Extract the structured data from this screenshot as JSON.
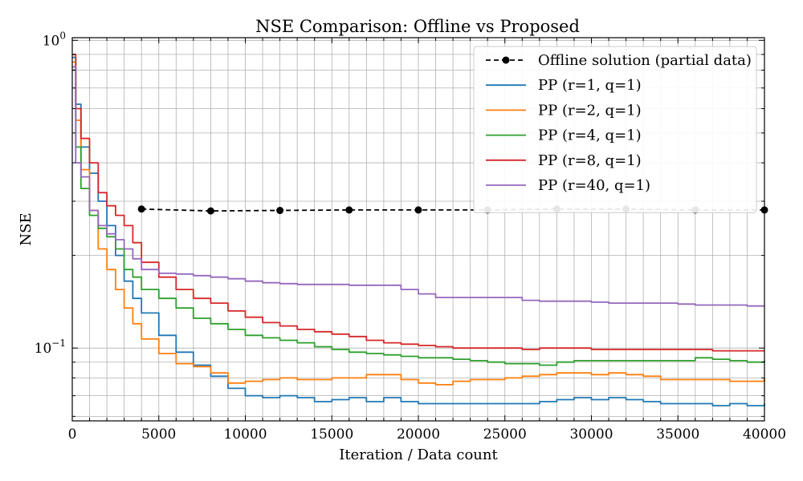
{
  "chart_data": {
    "type": "line",
    "title": "NSE Comparison: Offline vs Proposed",
    "xlabel": "Iteration / Data count",
    "ylabel": "NSE",
    "xlim": [
      0,
      40000
    ],
    "ylim": [
      0.058,
      1.02
    ],
    "yscale": "log",
    "grid": true,
    "legend_position": "top-right",
    "x_ticks": [
      0,
      5000,
      10000,
      15000,
      20000,
      25000,
      30000,
      35000,
      40000
    ],
    "x_tick_labels": [
      "0",
      "5000",
      "10000",
      "15000",
      "20000",
      "25000",
      "30000",
      "35000",
      "40000"
    ],
    "y_ticks": [
      1.0,
      0.1
    ],
    "y_tick_labels": [
      {
        "base": "10",
        "exp": "0"
      },
      {
        "base": "10",
        "exp": "−1"
      }
    ],
    "series": [
      {
        "name": "Offline solution (partial data)",
        "color": "#000000",
        "style": "dashed",
        "marker": "circle",
        "x": [
          4000,
          8000,
          12000,
          16000,
          20000,
          24000,
          28000,
          32000,
          36000,
          40000
        ],
        "y": [
          0.283,
          0.279,
          0.28,
          0.281,
          0.281,
          0.281,
          0.283,
          0.283,
          0.281,
          0.281
        ]
      },
      {
        "name": "PP (r=1, q=1)",
        "color": "#1f77b4",
        "style": "solid",
        "x": [
          0,
          200,
          500,
          1000,
          1500,
          2000,
          2500,
          3000,
          3500,
          4000,
          5000,
          6000,
          7000,
          8000,
          9000,
          10000,
          11000,
          12000,
          13000,
          14000,
          15000,
          16000,
          17000,
          18000,
          19000,
          20000,
          21000,
          22000,
          23000,
          24000,
          25000,
          26000,
          27000,
          28000,
          29000,
          30000,
          31000,
          32000,
          33000,
          34000,
          35000,
          36000,
          37000,
          38000,
          39000,
          40000
        ],
        "y": [
          0.88,
          0.62,
          0.45,
          0.37,
          0.3,
          0.25,
          0.2,
          0.165,
          0.145,
          0.13,
          0.11,
          0.097,
          0.088,
          0.081,
          0.074,
          0.07,
          0.069,
          0.07,
          0.069,
          0.067,
          0.068,
          0.069,
          0.067,
          0.069,
          0.067,
          0.066,
          0.066,
          0.066,
          0.066,
          0.066,
          0.066,
          0.066,
          0.067,
          0.068,
          0.069,
          0.068,
          0.069,
          0.068,
          0.067,
          0.066,
          0.066,
          0.066,
          0.065,
          0.066,
          0.065,
          0.066
        ]
      },
      {
        "name": "PP (r=2, q=1)",
        "color": "#ff7f0e",
        "style": "solid",
        "x": [
          0,
          200,
          500,
          1000,
          1500,
          2000,
          2500,
          3000,
          3500,
          4000,
          5000,
          6000,
          7000,
          8000,
          9000,
          10000,
          11000,
          12000,
          13000,
          14000,
          15000,
          16000,
          17000,
          18000,
          19000,
          20000,
          21000,
          22000,
          23000,
          24000,
          25000,
          26000,
          27000,
          28000,
          29000,
          30000,
          31000,
          32000,
          33000,
          34000,
          35000,
          36000,
          37000,
          38000,
          39000,
          40000
        ],
        "y": [
          0.85,
          0.55,
          0.38,
          0.28,
          0.21,
          0.18,
          0.155,
          0.135,
          0.12,
          0.107,
          0.096,
          0.089,
          0.087,
          0.083,
          0.077,
          0.078,
          0.079,
          0.08,
          0.079,
          0.079,
          0.08,
          0.08,
          0.082,
          0.082,
          0.079,
          0.077,
          0.076,
          0.078,
          0.079,
          0.079,
          0.08,
          0.081,
          0.082,
          0.083,
          0.083,
          0.082,
          0.083,
          0.082,
          0.081,
          0.079,
          0.079,
          0.079,
          0.079,
          0.078,
          0.078,
          0.08
        ]
      },
      {
        "name": "PP (r=4, q=1)",
        "color": "#2ca02c",
        "style": "solid",
        "x": [
          0,
          200,
          500,
          1000,
          1500,
          2000,
          2500,
          3000,
          3500,
          4000,
          5000,
          6000,
          7000,
          8000,
          9000,
          10000,
          11000,
          12000,
          13000,
          14000,
          15000,
          16000,
          17000,
          18000,
          19000,
          20000,
          21000,
          22000,
          23000,
          24000,
          25000,
          26000,
          27000,
          28000,
          29000,
          30000,
          31000,
          32000,
          33000,
          34000,
          35000,
          36000,
          37000,
          38000,
          39000,
          40000
        ],
        "y": [
          0.8,
          0.45,
          0.33,
          0.27,
          0.245,
          0.23,
          0.21,
          0.18,
          0.17,
          0.155,
          0.145,
          0.135,
          0.125,
          0.12,
          0.115,
          0.11,
          0.108,
          0.106,
          0.104,
          0.101,
          0.099,
          0.097,
          0.096,
          0.095,
          0.094,
          0.093,
          0.093,
          0.092,
          0.091,
          0.09,
          0.089,
          0.089,
          0.088,
          0.09,
          0.091,
          0.091,
          0.091,
          0.091,
          0.091,
          0.091,
          0.091,
          0.093,
          0.092,
          0.091,
          0.09,
          0.091
        ]
      },
      {
        "name": "PP (r=8, q=1)",
        "color": "#d62728",
        "style": "solid",
        "x": [
          0,
          200,
          500,
          1000,
          1500,
          2000,
          2500,
          3000,
          3500,
          4000,
          5000,
          6000,
          7000,
          8000,
          9000,
          10000,
          11000,
          12000,
          13000,
          14000,
          15000,
          16000,
          17000,
          18000,
          19000,
          20000,
          21000,
          22000,
          23000,
          24000,
          25000,
          26000,
          27000,
          28000,
          29000,
          30000,
          31000,
          32000,
          33000,
          34000,
          35000,
          36000,
          37000,
          38000,
          39000,
          40000
        ],
        "y": [
          0.9,
          0.6,
          0.48,
          0.4,
          0.32,
          0.29,
          0.27,
          0.25,
          0.22,
          0.19,
          0.17,
          0.155,
          0.145,
          0.14,
          0.132,
          0.126,
          0.121,
          0.118,
          0.115,
          0.113,
          0.111,
          0.109,
          0.106,
          0.104,
          0.103,
          0.102,
          0.101,
          0.1,
          0.1,
          0.1,
          0.1,
          0.099,
          0.1,
          0.1,
          0.1,
          0.099,
          0.099,
          0.099,
          0.099,
          0.099,
          0.099,
          0.099,
          0.098,
          0.098,
          0.098,
          0.098
        ]
      },
      {
        "name": "PP (r=40, q=1)",
        "color": "#9467bd",
        "style": "solid",
        "x": [
          0,
          200,
          500,
          1000,
          1500,
          2000,
          2500,
          3000,
          3500,
          4000,
          5000,
          6000,
          7000,
          8000,
          9000,
          10000,
          11000,
          12000,
          13000,
          14000,
          15000,
          16000,
          17000,
          18000,
          19000,
          20000,
          21000,
          22000,
          23000,
          24000,
          25000,
          26000,
          27000,
          28000,
          29000,
          30000,
          31000,
          32000,
          33000,
          34000,
          35000,
          36000,
          37000,
          38000,
          39000,
          40000
        ],
        "y": [
          0.82,
          0.4,
          0.36,
          0.28,
          0.25,
          0.235,
          0.225,
          0.21,
          0.195,
          0.18,
          0.175,
          0.174,
          0.172,
          0.17,
          0.168,
          0.165,
          0.163,
          0.162,
          0.161,
          0.161,
          0.161,
          0.16,
          0.16,
          0.16,
          0.155,
          0.15,
          0.146,
          0.146,
          0.146,
          0.146,
          0.146,
          0.143,
          0.142,
          0.142,
          0.142,
          0.141,
          0.14,
          0.14,
          0.14,
          0.14,
          0.139,
          0.138,
          0.138,
          0.138,
          0.137,
          0.137
        ]
      }
    ]
  }
}
